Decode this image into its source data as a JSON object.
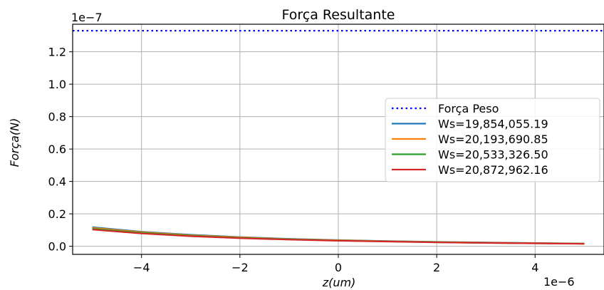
{
  "chart_data": {
    "type": "line",
    "title": "Força Resultante",
    "xlabel": "z(um)",
    "ylabel": "Força(N)",
    "x_multiplier": "1e−6",
    "y_multiplier": "1e−7",
    "xlim": [
      -5.4,
      5.4
    ],
    "ylim": [
      -0.05,
      1.37
    ],
    "x_ticks": [
      -4,
      -2,
      0,
      2,
      4
    ],
    "x_tick_labels": [
      "−4",
      "−2",
      "0",
      "2",
      "4"
    ],
    "y_ticks": [
      0.0,
      0.2,
      0.4,
      0.6,
      0.8,
      1.0,
      1.2
    ],
    "y_tick_labels": [
      "0.0",
      "0.2",
      "0.4",
      "0.6",
      "0.8",
      "1.0",
      "1.2"
    ],
    "grid": true,
    "legend_position": "center-right",
    "reference_line": {
      "name": "Força Peso",
      "y": 1.33,
      "color": "#0000ff",
      "style": "dotted"
    },
    "x": [
      -5,
      -4,
      -3,
      -2,
      -1,
      0,
      1,
      2,
      3,
      4,
      5
    ],
    "series": [
      {
        "name": "Ws=19,854,055.19",
        "color": "#1f77b4",
        "values": [
          0.118,
          0.09,
          0.071,
          0.057,
          0.046,
          0.038,
          0.032,
          0.027,
          0.023,
          0.02,
          0.017
        ]
      },
      {
        "name": "Ws=20,193,690.85",
        "color": "#ff7f0e",
        "values": [
          0.113,
          0.087,
          0.068,
          0.055,
          0.044,
          0.037,
          0.031,
          0.026,
          0.022,
          0.019,
          0.016
        ]
      },
      {
        "name": "Ws=20,533,326.50",
        "color": "#2ca02c",
        "values": [
          0.108,
          0.083,
          0.065,
          0.052,
          0.043,
          0.035,
          0.03,
          0.025,
          0.021,
          0.018,
          0.016
        ]
      },
      {
        "name": "Ws=20,872,962.16",
        "color": "#d62728",
        "values": [
          0.103,
          0.079,
          0.062,
          0.05,
          0.041,
          0.034,
          0.029,
          0.024,
          0.021,
          0.018,
          0.015
        ]
      }
    ]
  }
}
